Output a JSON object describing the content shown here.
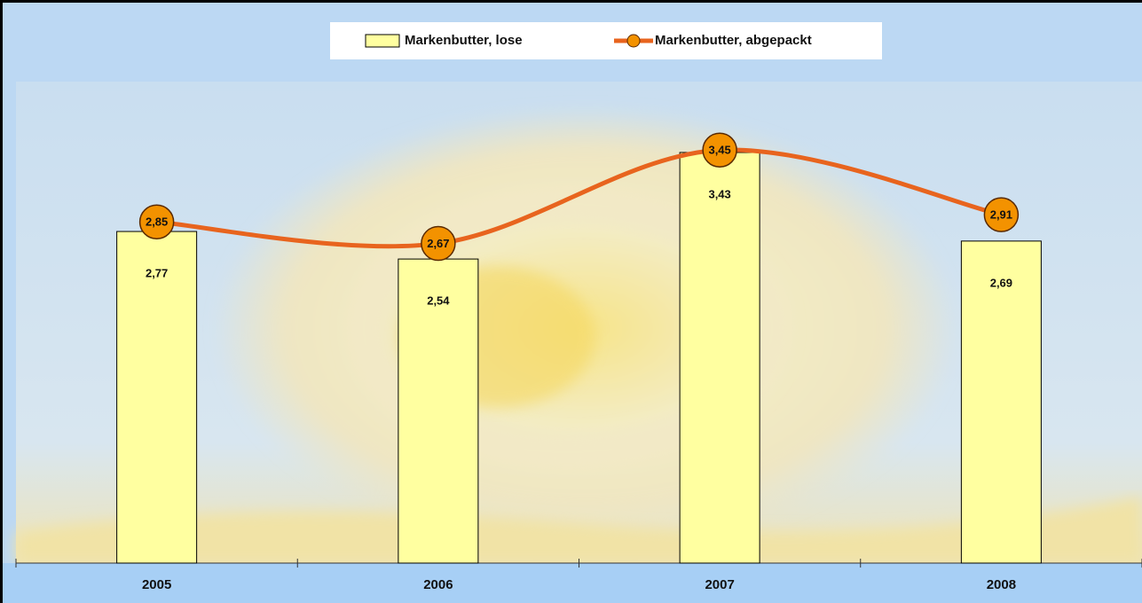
{
  "chart_data": {
    "type": "bar-line",
    "categories": [
      "2005",
      "2006",
      "2007",
      "2008"
    ],
    "series": [
      {
        "name": "Markenbutter, lose",
        "type": "bar",
        "color": "#ffffa0",
        "values": [
          2.77,
          2.54,
          3.43,
          2.69
        ],
        "value_labels": [
          "2,77",
          "2,54",
          "3,43",
          "2,69"
        ]
      },
      {
        "name": "Markenbutter, abgepackt",
        "type": "line",
        "color": "#e8641e",
        "marker_color": "#f39200",
        "smooth": true,
        "values": [
          2.85,
          2.67,
          3.45,
          2.91
        ],
        "value_labels": [
          "2,85",
          "2,67",
          "3,45",
          "2,91"
        ]
      }
    ],
    "legend": "top"
  }
}
